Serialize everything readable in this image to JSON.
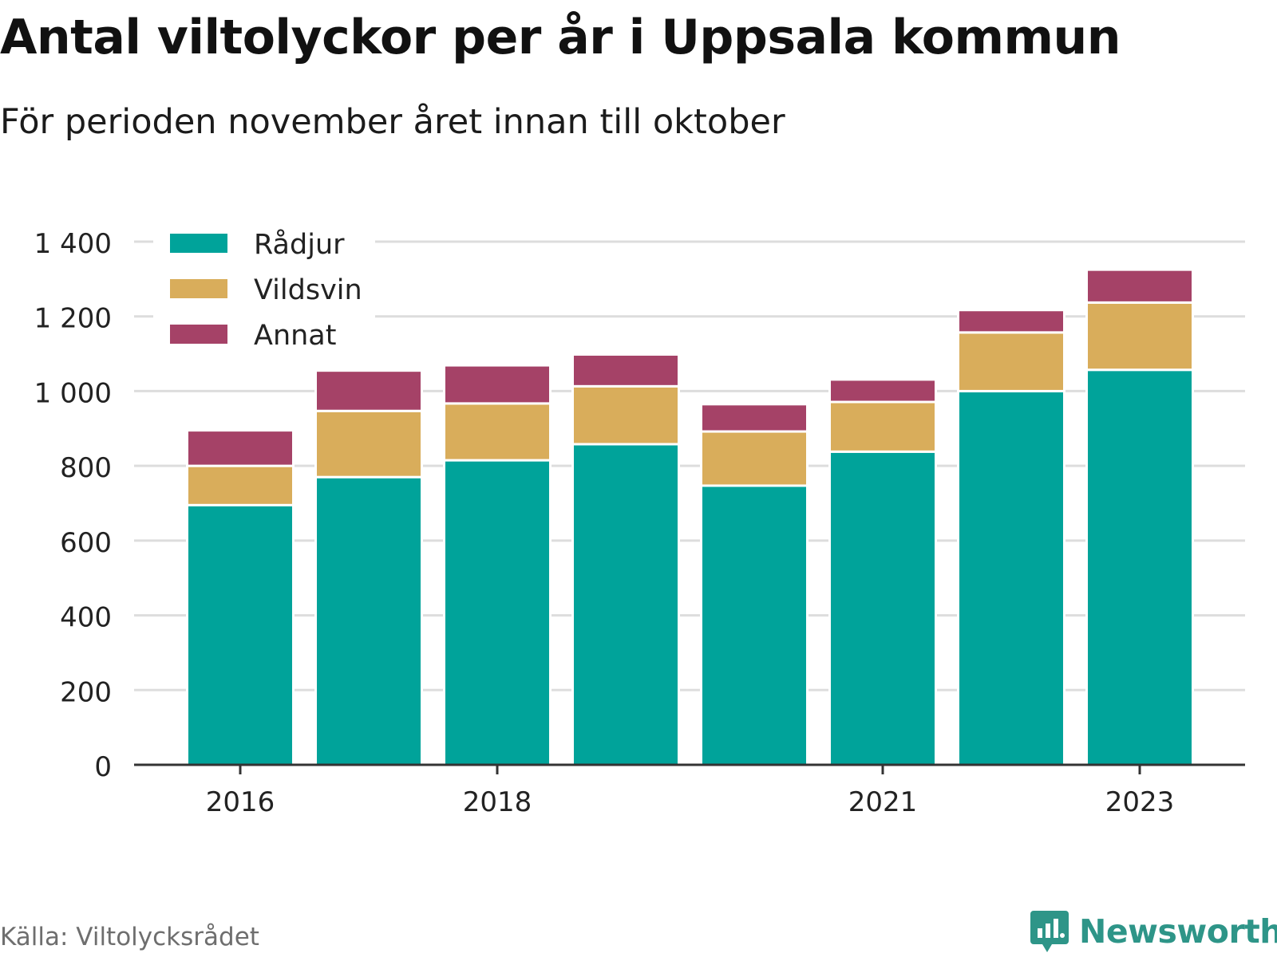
{
  "title": "Antal viltolyckor per år i Uppsala kommun",
  "subtitle": "För perioden november året innan till oktober",
  "source": "Källa: Viltolycksrådet",
  "brand": {
    "name": "Newsworthy",
    "icon": "newsworthy-logo-icon",
    "color": "#2e9588"
  },
  "chart_data": {
    "type": "bar",
    "stacked": true,
    "categories": [
      "2016",
      "2017",
      "2018",
      "2019",
      "2020",
      "2021",
      "2022",
      "2023"
    ],
    "series": [
      {
        "name": "Rådjur",
        "color": "#00a39a",
        "values": [
          695,
          770,
          815,
          858,
          747,
          838,
          1000,
          1057
        ]
      },
      {
        "name": "Vildsvin",
        "color": "#d9ad5b",
        "values": [
          105,
          177,
          152,
          155,
          145,
          133,
          157,
          180
        ]
      },
      {
        "name": "Annat",
        "color": "#a54267",
        "values": [
          95,
          108,
          102,
          85,
          73,
          60,
          60,
          88
        ]
      }
    ],
    "x_tick_labels": [
      "2016",
      "2018",
      "2021",
      "2023"
    ],
    "y_ticks": [
      0,
      200,
      400,
      600,
      800,
      1000,
      1200,
      1400
    ],
    "y_tick_labels": [
      "0",
      "200",
      "400",
      "600",
      "800",
      "1 000",
      "1 200",
      "1 400"
    ],
    "ylim": [
      0,
      1400
    ],
    "grid": true,
    "legend_position": "top-left"
  }
}
